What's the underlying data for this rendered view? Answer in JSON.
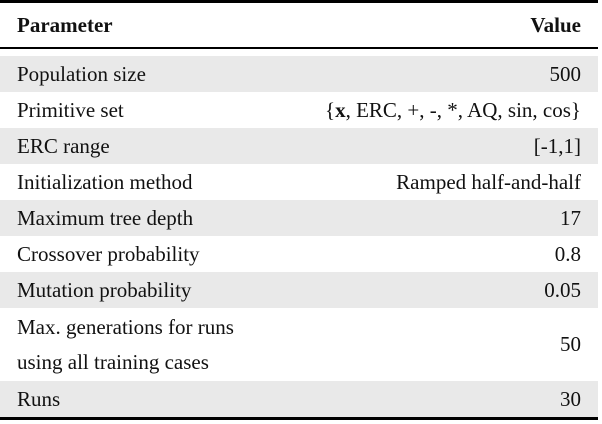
{
  "table": {
    "headers": {
      "param": "Parameter",
      "value": "Value"
    },
    "rows": [
      {
        "param": "Population size",
        "value": "500"
      },
      {
        "param": "Primitive set",
        "value_open": "{",
        "value_bold": "x",
        "value_rest": ", ERC, +, -, *, AQ, sin, cos}"
      },
      {
        "param": "ERC range",
        "value": "[-1,1]"
      },
      {
        "param": "Initialization method",
        "value": "Ramped half-and-half"
      },
      {
        "param": "Maximum tree depth",
        "value": "17"
      },
      {
        "param": "Crossover probability",
        "value": "0.8"
      },
      {
        "param": "Mutation probability",
        "value": "0.05"
      },
      {
        "param": "Max. generations for runs\nusing all training cases",
        "value": "50"
      },
      {
        "param": "Runs",
        "value": "30"
      }
    ],
    "colors": {
      "stripe": "#e9e9e9",
      "rule": "#000000",
      "text": "#111111",
      "background": "#ffffff"
    }
  }
}
